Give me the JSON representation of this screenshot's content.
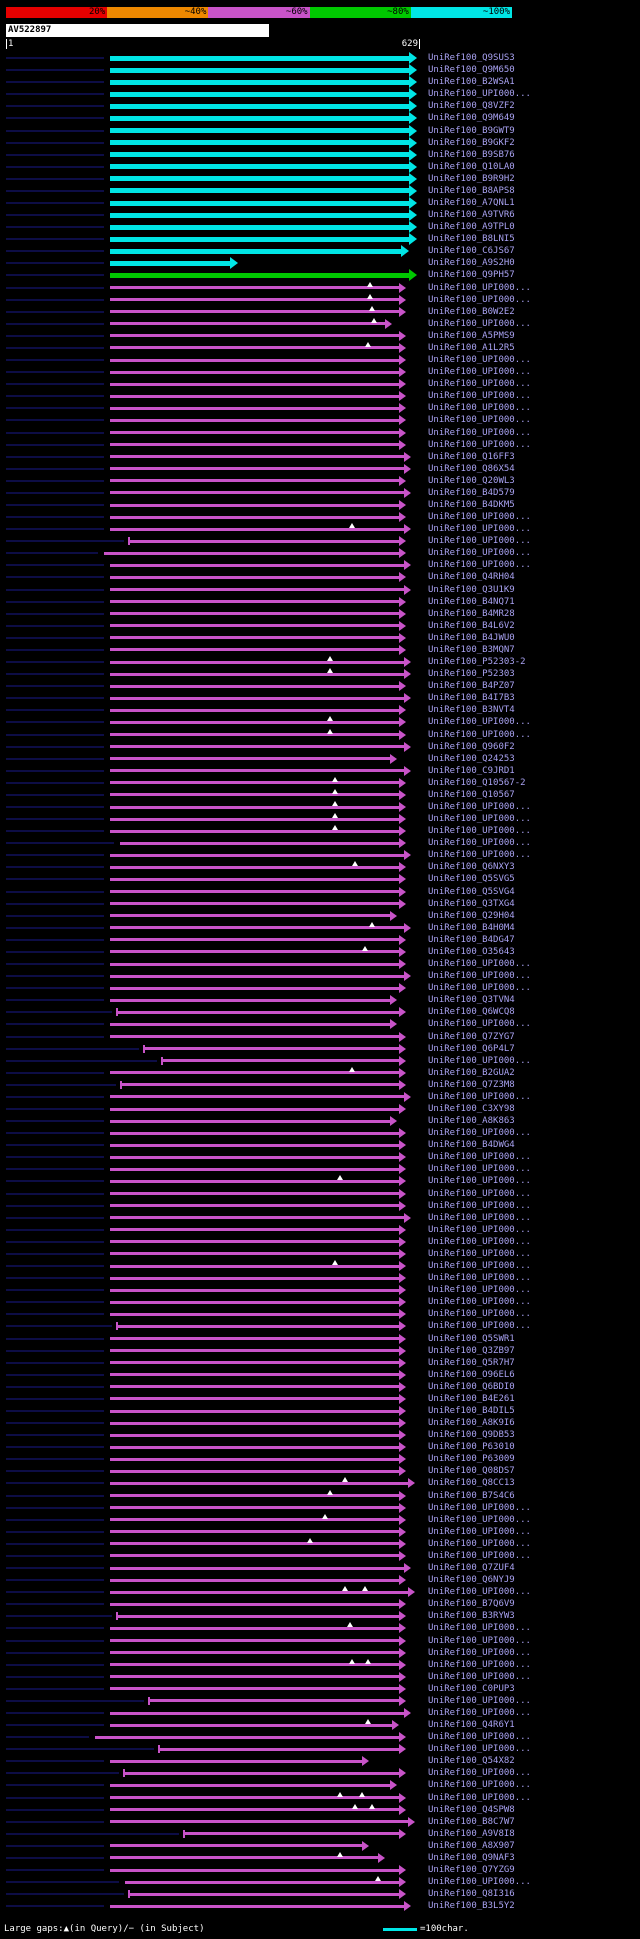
{
  "colors": {
    "cyan": "#00e6e6",
    "green": "#00c800",
    "magenta": "#c853c8",
    "red": "#e60000",
    "orange": "#ee8800",
    "label": "#a9a2f2",
    "navy": "#0d0d46",
    "white": "#ffffff",
    "black": "#000000"
  },
  "legend": {
    "segments": [
      {
        "label": "20%",
        "color": "#e60000"
      },
      {
        "label": "~40%",
        "color": "#ee8800"
      },
      {
        "label": "~60%",
        "color": "#c853c8"
      },
      {
        "label": "~80%",
        "color": "#00c800"
      },
      {
        "label": "~100%",
        "color": "#00e6e6"
      }
    ]
  },
  "query": {
    "name": "AV522897",
    "start_label": "1",
    "end_label": "629"
  },
  "footer": {
    "gaps_note": "Large gaps:▲(in Query)/− (in Subject)",
    "scale_note": "=100char."
  },
  "chart_data": {
    "type": "bar",
    "title": "BLAST graphical overview of hits against query AV522897",
    "orientation": "horizontal",
    "x_axis": {
      "start": 1,
      "end": 629
    },
    "legend_position": "top",
    "note": "Each row is one database hit; sx/ex are pixel positions of the aligned region bar, c: c=cyan(~100%), g=green(~80%), default magenta(~60%); m = white gap-marker positions; t = left end tick",
    "rows": [
      {
        "l": "UniRef100_Q9SUS3",
        "c": "c",
        "ex": 409
      },
      {
        "l": "UniRef100_Q9M650",
        "c": "c",
        "ex": 409
      },
      {
        "l": "UniRef100_B2WSA1",
        "c": "c",
        "ex": 409
      },
      {
        "l": "UniRef100_UPI000...",
        "c": "c",
        "ex": 409
      },
      {
        "l": "UniRef100_Q8VZF2",
        "c": "c",
        "ex": 409
      },
      {
        "l": "UniRef100_Q9M649",
        "c": "c",
        "ex": 409
      },
      {
        "l": "UniRef100_B9GWT9",
        "c": "c",
        "ex": 409
      },
      {
        "l": "UniRef100_B9GKF2",
        "c": "c",
        "ex": 409
      },
      {
        "l": "UniRef100_B9SB76",
        "c": "c",
        "ex": 409
      },
      {
        "l": "UniRef100_Q10LA0",
        "c": "c",
        "ex": 409
      },
      {
        "l": "UniRef100_B9R9H2",
        "c": "c",
        "ex": 409
      },
      {
        "l": "UniRef100_B8APS8",
        "c": "c",
        "ex": 409
      },
      {
        "l": "UniRef100_A7QNL1",
        "c": "c",
        "ex": 409
      },
      {
        "l": "UniRef100_A9TVR6",
        "c": "c",
        "ex": 409
      },
      {
        "l": "UniRef100_A9TPL0",
        "c": "c",
        "ex": 409
      },
      {
        "l": "UniRef100_B8LNI5",
        "c": "c",
        "ex": 409
      },
      {
        "l": "UniRef100_C6JS67",
        "c": "c",
        "ex": 401
      },
      {
        "l": "UniRef100_A9S2H0",
        "c": "c",
        "ex": 230
      },
      {
        "l": "UniRef100_Q9PH57",
        "c": "g",
        "ex": 409
      },
      {
        "l": "UniRef100_UPI000...",
        "m": [
          370
        ]
      },
      {
        "l": "UniRef100_UPI000...",
        "m": [
          370
        ]
      },
      {
        "l": "UniRef100_B0W2E2",
        "m": [
          372
        ]
      },
      {
        "l": "UniRef100_UPI000...",
        "ex": 385,
        "m": [
          374
        ]
      },
      {
        "l": "UniRef100_A5PMS9"
      },
      {
        "l": "UniRef100_A1L2R5",
        "m": [
          368
        ]
      },
      {
        "l": "UniRef100_UPI000..."
      },
      {
        "l": "UniRef100_UPI000..."
      },
      {
        "l": "UniRef100_UPI000..."
      },
      {
        "l": "UniRef100_UPI000..."
      },
      {
        "l": "UniRef100_UPI000..."
      },
      {
        "l": "UniRef100_UPI000..."
      },
      {
        "l": "UniRef100_UPI000..."
      },
      {
        "l": "UniRef100_UPI000..."
      },
      {
        "l": "UniRef100_Q16FF3",
        "ex": 404
      },
      {
        "l": "UniRef100_Q86X54",
        "ex": 404
      },
      {
        "l": "UniRef100_Q20WL3"
      },
      {
        "l": "UniRef100_B4D579",
        "ex": 404
      },
      {
        "l": "UniRef100_B4DKM5"
      },
      {
        "l": "UniRef100_UPI000..."
      },
      {
        "l": "UniRef100_UPI000...",
        "ex": 404,
        "m": [
          352
        ]
      },
      {
        "l": "UniRef100_UPI000...",
        "sx": 130,
        "t": 1
      },
      {
        "l": "UniRef100_UPI000...",
        "sx": 104
      },
      {
        "l": "UniRef100_UPI000...",
        "ex": 404
      },
      {
        "l": "UniRef100_Q4RH04"
      },
      {
        "l": "UniRef100_Q3U1K9",
        "ex": 404
      },
      {
        "l": "UniRef100_B4NQ71"
      },
      {
        "l": "UniRef100_B4MR28"
      },
      {
        "l": "UniRef100_B4L6V2"
      },
      {
        "l": "UniRef100_B4JWU0"
      },
      {
        "l": "UniRef100_B3MQN7"
      },
      {
        "l": "UniRef100_P52303-2",
        "ex": 404,
        "m": [
          330
        ]
      },
      {
        "l": "UniRef100_P52303",
        "ex": 404,
        "m": [
          330
        ]
      },
      {
        "l": "UniRef100_B4PZ07"
      },
      {
        "l": "UniRef100_B4I7B3",
        "ex": 404
      },
      {
        "l": "UniRef100_B3NVT4"
      },
      {
        "l": "UniRef100_UPI000...",
        "m": [
          330
        ]
      },
      {
        "l": "UniRef100_UPI000...",
        "m": [
          330
        ]
      },
      {
        "l": "UniRef100_Q960F2",
        "ex": 404
      },
      {
        "l": "UniRef100_Q24253",
        "ex": 390
      },
      {
        "l": "UniRef100_C9JRD1",
        "ex": 404
      },
      {
        "l": "UniRef100_Q10567-2",
        "m": [
          335
        ]
      },
      {
        "l": "UniRef100_Q10567",
        "m": [
          335
        ]
      },
      {
        "l": "UniRef100_UPI000...",
        "m": [
          335
        ]
      },
      {
        "l": "UniRef100_UPI000...",
        "m": [
          335
        ]
      },
      {
        "l": "UniRef100_UPI000...",
        "m": [
          335
        ]
      },
      {
        "l": "UniRef100_UPI000...",
        "sx": 120
      },
      {
        "l": "UniRef100_UPI000...",
        "ex": 404
      },
      {
        "l": "UniRef100_Q6NXY3",
        "m": [
          355
        ]
      },
      {
        "l": "UniRef100_Q5SVG5"
      },
      {
        "l": "UniRef100_Q5SVG4"
      },
      {
        "l": "UniRef100_Q3TXG4"
      },
      {
        "l": "UniRef100_Q29H04",
        "ex": 390
      },
      {
        "l": "UniRef100_B4H0M4",
        "ex": 404,
        "m": [
          372
        ]
      },
      {
        "l": "UniRef100_B4DG47"
      },
      {
        "l": "UniRef100_O35643",
        "m": [
          365
        ]
      },
      {
        "l": "UniRef100_UPI000..."
      },
      {
        "l": "UniRef100_UPI000...",
        "ex": 404
      },
      {
        "l": "UniRef100_UPI000..."
      },
      {
        "l": "UniRef100_Q3TVN4",
        "ex": 390
      },
      {
        "l": "UniRef100_Q6WCQ8",
        "sx": 118,
        "t": 1
      },
      {
        "l": "UniRef100_UPI000...",
        "ex": 390
      },
      {
        "l": "UniRef100_Q7ZYG7"
      },
      {
        "l": "UniRef100_Q6P4L7",
        "sx": 145,
        "t": 1
      },
      {
        "l": "UniRef100_UPI000...",
        "sx": 163,
        "t": 1
      },
      {
        "l": "UniRef100_B2GUA2",
        "m": [
          352
        ]
      },
      {
        "l": "UniRef100_Q7Z3M8",
        "sx": 122,
        "t": 1
      },
      {
        "l": "UniRef100_UPI000...",
        "ex": 404
      },
      {
        "l": "UniRef100_C3XY98"
      },
      {
        "l": "UniRef100_A8K863",
        "ex": 390
      },
      {
        "l": "UniRef100_UPI000..."
      },
      {
        "l": "UniRef100_B4DWG4"
      },
      {
        "l": "UniRef100_UPI000..."
      },
      {
        "l": "UniRef100_UPI000..."
      },
      {
        "l": "UniRef100_UPI000...",
        "m": [
          340
        ]
      },
      {
        "l": "UniRef100_UPI000..."
      },
      {
        "l": "UniRef100_UPI000..."
      },
      {
        "l": "UniRef100_UPI000...",
        "ex": 404
      },
      {
        "l": "UniRef100_UPI000..."
      },
      {
        "l": "UniRef100_UPI000..."
      },
      {
        "l": "UniRef100_UPI000..."
      },
      {
        "l": "UniRef100_UPI000...",
        "m": [
          335
        ]
      },
      {
        "l": "UniRef100_UPI000..."
      },
      {
        "l": "UniRef100_UPI000..."
      },
      {
        "l": "UniRef100_UPI000..."
      },
      {
        "l": "UniRef100_UPI000..."
      },
      {
        "l": "UniRef100_UPI000...",
        "sx": 118,
        "t": 1
      },
      {
        "l": "UniRef100_Q5SWR1"
      },
      {
        "l": "UniRef100_Q3ZB97"
      },
      {
        "l": "UniRef100_Q5R7H7"
      },
      {
        "l": "UniRef100_O96EL6"
      },
      {
        "l": "UniRef100_Q6BDI0"
      },
      {
        "l": "UniRef100_B4E261"
      },
      {
        "l": "UniRef100_B4DIL5"
      },
      {
        "l": "UniRef100_A8K9I6"
      },
      {
        "l": "UniRef100_Q9DB53"
      },
      {
        "l": "UniRef100_P63010"
      },
      {
        "l": "UniRef100_P63009"
      },
      {
        "l": "UniRef100_Q08DS7"
      },
      {
        "l": "UniRef100_Q8CC13",
        "ex": 408,
        "m": [
          345
        ]
      },
      {
        "l": "UniRef100_B7S4C6",
        "m": [
          330
        ]
      },
      {
        "l": "UniRef100_UPI000..."
      },
      {
        "l": "UniRef100_UPI000...",
        "m": [
          325
        ]
      },
      {
        "l": "UniRef100_UPI000..."
      },
      {
        "l": "UniRef100_UPI000...",
        "m": [
          310
        ]
      },
      {
        "l": "UniRef100_UPI000..."
      },
      {
        "l": "UniRef100_Q7ZUF4",
        "ex": 404
      },
      {
        "l": "UniRef100_Q6NYJ9"
      },
      {
        "l": "UniRef100_UPI000...",
        "ex": 408,
        "m": [
          345,
          365
        ]
      },
      {
        "l": "UniRef100_B7Q6V9"
      },
      {
        "l": "UniRef100_B3RYW3",
        "sx": 118,
        "t": 1
      },
      {
        "l": "UniRef100_UPI000...",
        "m": [
          350
        ]
      },
      {
        "l": "UniRef100_UPI000..."
      },
      {
        "l": "UniRef100_UPI000..."
      },
      {
        "l": "UniRef100_UPI000...",
        "m": [
          352,
          368
        ]
      },
      {
        "l": "UniRef100_UPI000..."
      },
      {
        "l": "UniRef100_C0PUP3"
      },
      {
        "l": "UniRef100_UPI000...",
        "sx": 150,
        "t": 1
      },
      {
        "l": "UniRef100_UPI000...",
        "ex": 404
      },
      {
        "l": "UniRef100_Q4R6Y1",
        "ex": 392,
        "m": [
          368
        ]
      },
      {
        "l": "UniRef100_UPI000...",
        "sx": 95
      },
      {
        "l": "UniRef100_UPI000...",
        "sx": 160,
        "t": 1
      },
      {
        "l": "UniRef100_Q54X82",
        "ex": 362
      },
      {
        "l": "UniRef100_UPI000...",
        "sx": 125,
        "t": 1
      },
      {
        "l": "UniRef100_UPI000...",
        "ex": 390
      },
      {
        "l": "UniRef100_UPI000...",
        "m": [
          340,
          362
        ]
      },
      {
        "l": "UniRef100_Q4SPW8",
        "m": [
          355,
          372
        ]
      },
      {
        "l": "UniRef100_B8C7W7",
        "ex": 408
      },
      {
        "l": "UniRef100_A9V8I8",
        "sx": 185,
        "t": 1
      },
      {
        "l": "UniRef100_A8X907",
        "ex": 362
      },
      {
        "l": "UniRef100_Q9NAF3",
        "ex": 378,
        "m": [
          340
        ]
      },
      {
        "l": "UniRef100_Q7YZG9"
      },
      {
        "l": "UniRef100_UPI000...",
        "sx": 125,
        "m": [
          378
        ]
      },
      {
        "l": "UniRef100_Q8I316",
        "sx": 130,
        "t": 1
      },
      {
        "l": "UniRef100_B3L5Y2",
        "ex": 404
      }
    ]
  }
}
